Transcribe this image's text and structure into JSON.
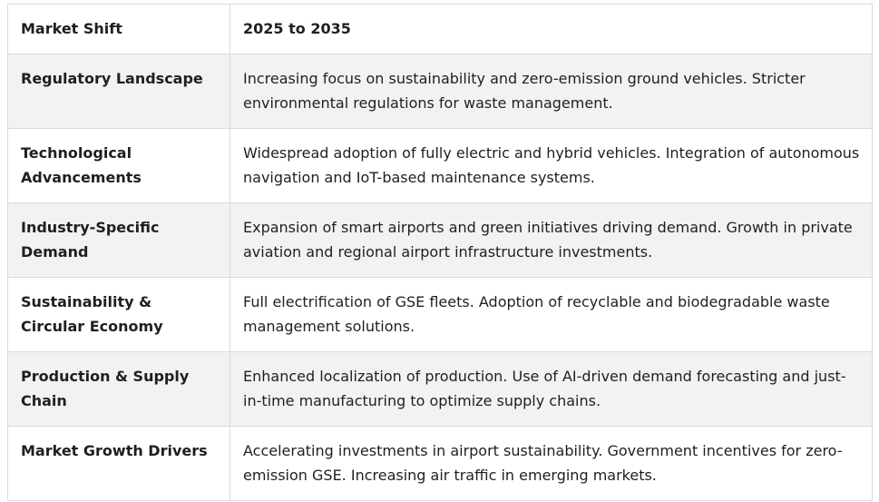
{
  "table": {
    "headers": [
      "Market Shift",
      "2025 to 2035"
    ],
    "rows": [
      {
        "label": "Regulatory Landscape",
        "text": "Increasing focus on sustainability and zero-emission ground vehicles. Stricter environmental regulations for waste management."
      },
      {
        "label": "Technological Advancements",
        "text": "Widespread adoption of fully electric and hybrid vehicles. Integration of autonomous navigation and IoT-based maintenance systems."
      },
      {
        "label": "Industry-Specific Demand",
        "text": "Expansion of smart airports and green initiatives driving demand. Growth in private aviation and regional airport infrastructure investments."
      },
      {
        "label": "Sustainability & Circular Economy",
        "text": "Full electrification of GSE fleets. Adoption of recyclable and biodegradable waste management solutions."
      },
      {
        "label": "Production & Supply Chain",
        "text": "Enhanced localization of production. Use of AI-driven demand forecasting and just-in-time manufacturing to optimize supply chains."
      },
      {
        "label": "Market Growth Drivers",
        "text": "Accelerating investments in airport sustainability. Government incentives for zero-emission GSE. Increasing air traffic in emerging markets."
      }
    ]
  },
  "colors": {
    "border": "#dadada",
    "shaded_row": "#f2f2f2",
    "text": "#1f1f1f"
  }
}
